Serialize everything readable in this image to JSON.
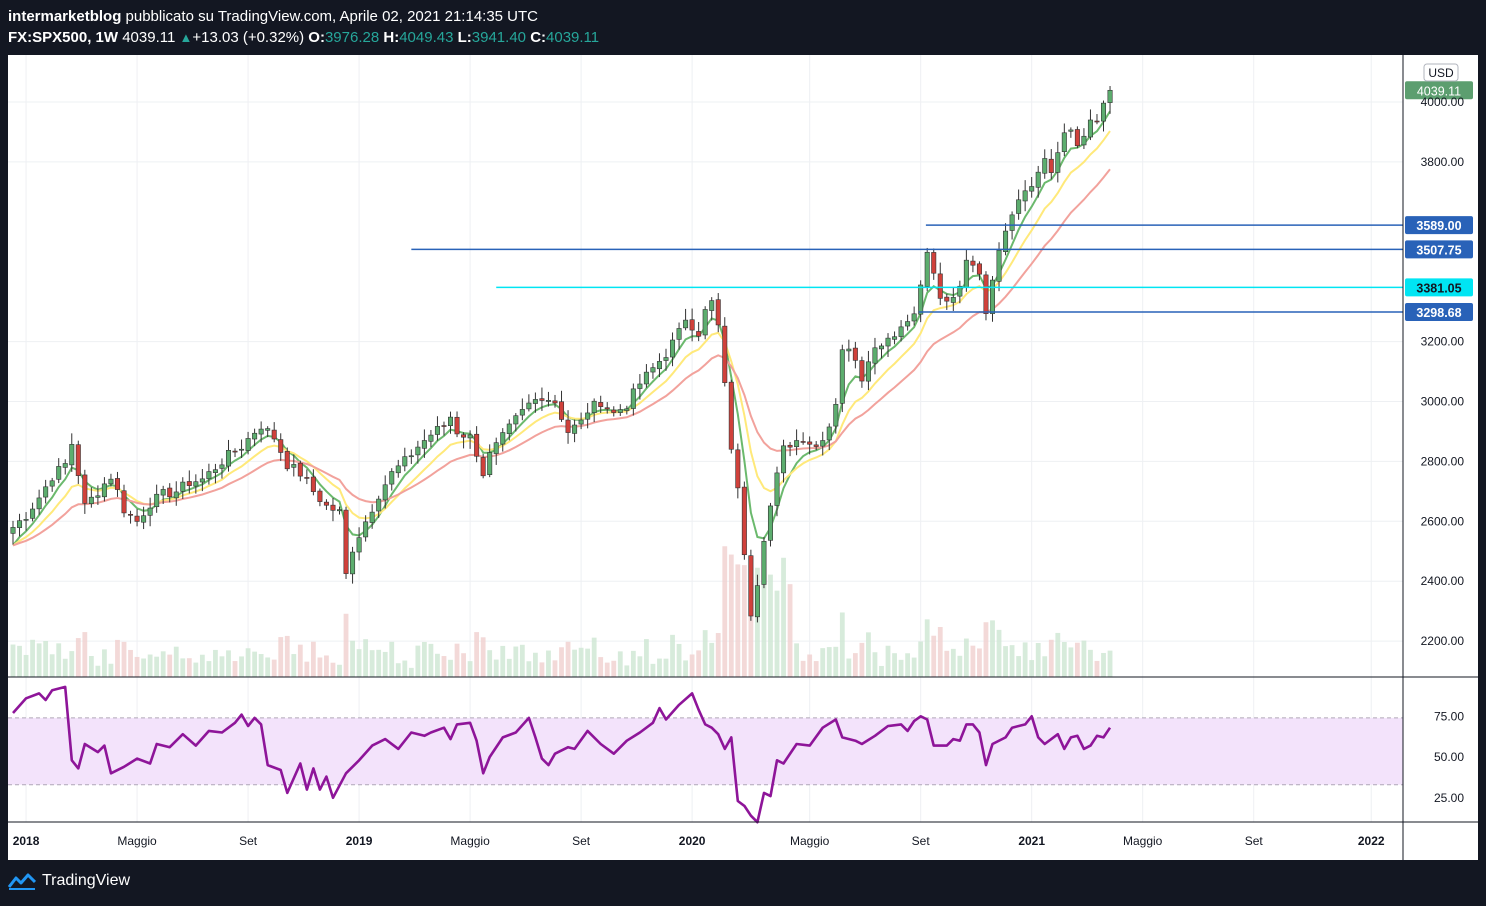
{
  "header": {
    "author": "intermarketblog",
    "published_text": " pubblicato su TradingView.com, Aprile 02, 2021 21:14:35 UTC",
    "symbol": "FX:SPX500, 1W",
    "last": "4039.11",
    "change": "+13.03 (+0.32%)",
    "o_label": "O:",
    "o_value": "3976.28",
    "h_label": "H:",
    "h_value": "4049.43",
    "l_label": "L:",
    "l_value": "3941.40",
    "c_label": "C:",
    "c_value": "4039.11"
  },
  "footer": {
    "brand": "TradingView",
    "logo_icon": "tradingview-logo-icon"
  },
  "colors": {
    "up": "#5cad6e",
    "down": "#d0413b",
    "ma_fast": "#6bb96d",
    "ma_mid": "#ffe97a",
    "ma_slow": "#f2a29c",
    "rsi": "#8e1599",
    "rsi_band": "#f3e3fb",
    "hline": "#2962b8",
    "hline_highlight": "#00e5f3"
  },
  "chart_data": [
    {
      "type": "candlestick",
      "symbol": "FX:SPX500",
      "timeframe": "1W",
      "currency": "USD",
      "y_ticks": [
        "2200.00",
        "2400.00",
        "2600.00",
        "2800.00",
        "3000.00",
        "3200.00",
        "3800.00",
        "4000.00"
      ],
      "ylim": [
        2090,
        4150
      ],
      "x_ticks": [
        {
          "label": "2018",
          "bold": true,
          "week": 2
        },
        {
          "label": "Maggio",
          "bold": false,
          "week": 19
        },
        {
          "label": "Set",
          "bold": false,
          "week": 36
        },
        {
          "label": "2019",
          "bold": true,
          "week": 53
        },
        {
          "label": "Maggio",
          "bold": false,
          "week": 70
        },
        {
          "label": "Set",
          "bold": false,
          "week": 87
        },
        {
          "label": "2020",
          "bold": true,
          "week": 104
        },
        {
          "label": "Maggio",
          "bold": false,
          "week": 122
        },
        {
          "label": "Set",
          "bold": false,
          "week": 139
        },
        {
          "label": "2021",
          "bold": true,
          "week": 156
        },
        {
          "label": "Maggio",
          "bold": false,
          "week": 173
        },
        {
          "label": "Set",
          "bold": false,
          "week": 190
        },
        {
          "label": "2022",
          "bold": true,
          "week": 208
        }
      ],
      "close_path": [
        [
          0,
          2580
        ],
        [
          2,
          2620
        ],
        [
          4,
          2680
        ],
        [
          6,
          2750
        ],
        [
          8,
          2790
        ],
        [
          9,
          2860
        ],
        [
          10,
          2760
        ],
        [
          11,
          2650
        ],
        [
          13,
          2700
        ],
        [
          15,
          2750
        ],
        [
          16,
          2700
        ],
        [
          17,
          2640
        ],
        [
          19,
          2600
        ],
        [
          21,
          2660
        ],
        [
          23,
          2690
        ],
        [
          25,
          2700
        ],
        [
          27,
          2730
        ],
        [
          29,
          2740
        ],
        [
          31,
          2780
        ],
        [
          33,
          2820
        ],
        [
          35,
          2850
        ],
        [
          37,
          2900
        ],
        [
          38,
          2920
        ],
        [
          40,
          2880
        ],
        [
          42,
          2790
        ],
        [
          44,
          2760
        ],
        [
          46,
          2700
        ],
        [
          48,
          2650
        ],
        [
          50,
          2630
        ],
        [
          51,
          2420
        ],
        [
          52,
          2510
        ],
        [
          54,
          2600
        ],
        [
          56,
          2690
        ],
        [
          58,
          2760
        ],
        [
          60,
          2800
        ],
        [
          62,
          2850
        ],
        [
          64,
          2890
        ],
        [
          66,
          2920
        ],
        [
          67,
          2950
        ],
        [
          68,
          2900
        ],
        [
          70,
          2880
        ],
        [
          71,
          2830
        ],
        [
          72,
          2760
        ],
        [
          73,
          2820
        ],
        [
          75,
          2880
        ],
        [
          77,
          2940
        ],
        [
          79,
          2990
        ],
        [
          81,
          3020
        ],
        [
          83,
          3000
        ],
        [
          85,
          2900
        ],
        [
          87,
          2930
        ],
        [
          88,
          2970
        ],
        [
          90,
          3000
        ],
        [
          92,
          2960
        ],
        [
          94,
          2990
        ],
        [
          96,
          3060
        ],
        [
          98,
          3110
        ],
        [
          100,
          3160
        ],
        [
          102,
          3230
        ],
        [
          103,
          3280
        ],
        [
          105,
          3230
        ],
        [
          106,
          3300
        ],
        [
          107,
          3330
        ],
        [
          108,
          3250
        ],
        [
          109,
          3050
        ],
        [
          110,
          2850
        ],
        [
          111,
          2700
        ],
        [
          112,
          2500
        ],
        [
          113,
          2300
        ],
        [
          114,
          2400
        ],
        [
          115,
          2550
        ],
        [
          116,
          2650
        ],
        [
          117,
          2750
        ],
        [
          118,
          2840
        ],
        [
          119,
          2860
        ],
        [
          121,
          2880
        ],
        [
          123,
          2850
        ],
        [
          125,
          2920
        ],
        [
          126,
          3000
        ],
        [
          127,
          3180
        ],
        [
          129,
          3150
        ],
        [
          130,
          3080
        ],
        [
          131,
          3150
        ],
        [
          133,
          3200
        ],
        [
          135,
          3230
        ],
        [
          137,
          3270
        ],
        [
          138,
          3310
        ],
        [
          139,
          3380
        ],
        [
          140,
          3500
        ],
        [
          141,
          3420
        ],
        [
          142,
          3350
        ],
        [
          143,
          3320
        ],
        [
          144,
          3340
        ],
        [
          145,
          3380
        ],
        [
          146,
          3480
        ],
        [
          147,
          3460
        ],
        [
          148,
          3440
        ],
        [
          149,
          3280
        ],
        [
          150,
          3420
        ],
        [
          151,
          3520
        ],
        [
          152,
          3580
        ],
        [
          153,
          3630
        ],
        [
          154,
          3690
        ],
        [
          155,
          3700
        ],
        [
          156,
          3720
        ],
        [
          157,
          3770
        ],
        [
          158,
          3810
        ],
        [
          159,
          3750
        ],
        [
          160,
          3830
        ],
        [
          161,
          3900
        ],
        [
          162,
          3920
        ],
        [
          163,
          3840
        ],
        [
          164,
          3880
        ],
        [
          165,
          3940
        ],
        [
          166,
          3920
        ],
        [
          167,
          3990
        ],
        [
          168,
          4039
        ]
      ],
      "rsi_path": [
        [
          0,
          77
        ],
        [
          2,
          86
        ],
        [
          4,
          89
        ],
        [
          5,
          85
        ],
        [
          6,
          91
        ],
        [
          8,
          93
        ],
        [
          9,
          48
        ],
        [
          10,
          43
        ],
        [
          11,
          58
        ],
        [
          13,
          53
        ],
        [
          14,
          57
        ],
        [
          15,
          40
        ],
        [
          17,
          44
        ],
        [
          19,
          49
        ],
        [
          21,
          46
        ],
        [
          22,
          58
        ],
        [
          24,
          56
        ],
        [
          26,
          64
        ],
        [
          28,
          57
        ],
        [
          30,
          66
        ],
        [
          32,
          65
        ],
        [
          34,
          71
        ],
        [
          35,
          76
        ],
        [
          36,
          69
        ],
        [
          37,
          74
        ],
        [
          38,
          70
        ],
        [
          39,
          45
        ],
        [
          41,
          42
        ],
        [
          42,
          28
        ],
        [
          44,
          46
        ],
        [
          45,
          30
        ],
        [
          46,
          43
        ],
        [
          47,
          30
        ],
        [
          48,
          38
        ],
        [
          49,
          25
        ],
        [
          51,
          40
        ],
        [
          53,
          48
        ],
        [
          55,
          57
        ],
        [
          57,
          61
        ],
        [
          59,
          55
        ],
        [
          61,
          65
        ],
        [
          63,
          63
        ],
        [
          64,
          65
        ],
        [
          66,
          68
        ],
        [
          67,
          61
        ],
        [
          68,
          70
        ],
        [
          70,
          71
        ],
        [
          71,
          60
        ],
        [
          72,
          40
        ],
        [
          73,
          50
        ],
        [
          75,
          62
        ],
        [
          77,
          65
        ],
        [
          79,
          74
        ],
        [
          80,
          62
        ],
        [
          81,
          49
        ],
        [
          82,
          45
        ],
        [
          83,
          52
        ],
        [
          85,
          56
        ],
        [
          86,
          55
        ],
        [
          88,
          66
        ],
        [
          90,
          58
        ],
        [
          92,
          52
        ],
        [
          94,
          60
        ],
        [
          96,
          65
        ],
        [
          98,
          71
        ],
        [
          99,
          80
        ],
        [
          100,
          73
        ],
        [
          102,
          82
        ],
        [
          104,
          89
        ],
        [
          105,
          79
        ],
        [
          106,
          70
        ],
        [
          107,
          68
        ],
        [
          108,
          64
        ],
        [
          109,
          55
        ],
        [
          110,
          62
        ],
        [
          111,
          23
        ],
        [
          112,
          20
        ],
        [
          113,
          14
        ],
        [
          114,
          10
        ],
        [
          115,
          28
        ],
        [
          116,
          26
        ],
        [
          117,
          48
        ],
        [
          118,
          46
        ],
        [
          120,
          58
        ],
        [
          122,
          57
        ],
        [
          124,
          68
        ],
        [
          126,
          73
        ],
        [
          127,
          62
        ],
        [
          129,
          60
        ],
        [
          130,
          58
        ],
        [
          132,
          63
        ],
        [
          134,
          69
        ],
        [
          136,
          70
        ],
        [
          137,
          66
        ],
        [
          138,
          72
        ],
        [
          139,
          75
        ],
        [
          140,
          73
        ],
        [
          141,
          57
        ],
        [
          143,
          57
        ],
        [
          144,
          61
        ],
        [
          145,
          60
        ],
        [
          146,
          70
        ],
        [
          147,
          70
        ],
        [
          148,
          65
        ],
        [
          149,
          45
        ],
        [
          150,
          58
        ],
        [
          152,
          62
        ],
        [
          153,
          68
        ],
        [
          155,
          70
        ],
        [
          156,
          75
        ],
        [
          157,
          62
        ],
        [
          158,
          58
        ],
        [
          160,
          64
        ],
        [
          161,
          55
        ],
        [
          162,
          62
        ],
        [
          163,
          63
        ],
        [
          164,
          55
        ],
        [
          165,
          57
        ],
        [
          166,
          63
        ],
        [
          167,
          62
        ],
        [
          168,
          68
        ]
      ],
      "rsi_ticks": [
        "25.00",
        "50.00",
        "75.00"
      ],
      "rsi_band": [
        33,
        74
      ]
    }
  ],
  "price_labels": {
    "usd": "USD",
    "last_price": "4039.11",
    "hlines": [
      {
        "label": "3589.00",
        "price": 3589.0,
        "from_week": 139.8,
        "highlight": false
      },
      {
        "label": "3507.75",
        "price": 3507.75,
        "from_week": 61,
        "highlight": false
      },
      {
        "label": "3381.05",
        "price": 3381.05,
        "from_week": 74,
        "highlight": true
      },
      {
        "label": "3298.68",
        "price": 3298.68,
        "from_week": 138.7,
        "highlight": false
      }
    ]
  }
}
